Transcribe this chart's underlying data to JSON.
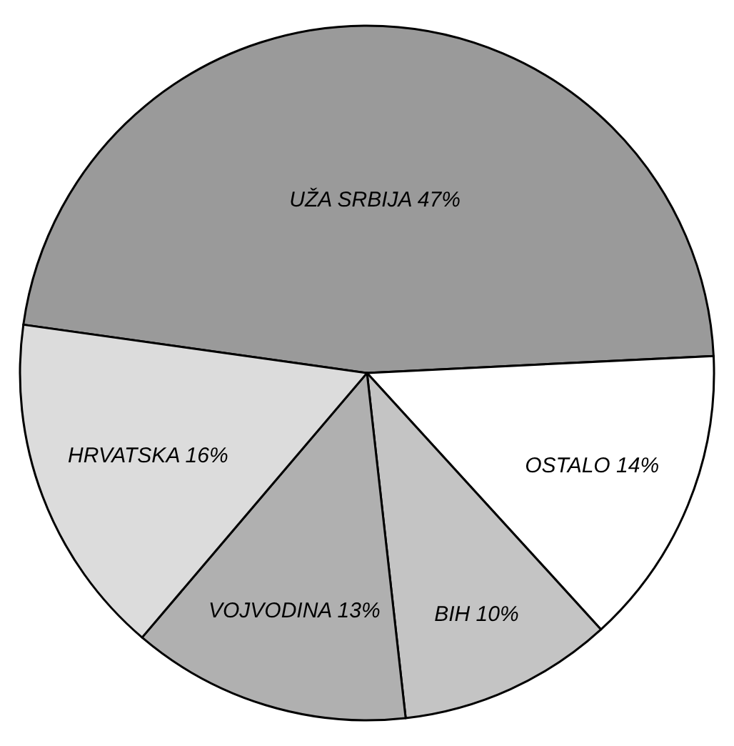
{
  "chart_data": {
    "type": "pie",
    "categories": [
      "UŽA SRBIJA",
      "OSTALO",
      "BIH",
      "VOJVODINA",
      "HRVATSKA"
    ],
    "values": [
      47,
      14,
      10,
      13,
      16
    ],
    "value_labels": [
      "47%",
      "14%",
      "10%",
      "13%",
      "16%"
    ],
    "colors": [
      "#9a9a9a",
      "#ffffff",
      "#c4c4c4",
      "#b0b0b0",
      "#dcdcdc"
    ]
  }
}
